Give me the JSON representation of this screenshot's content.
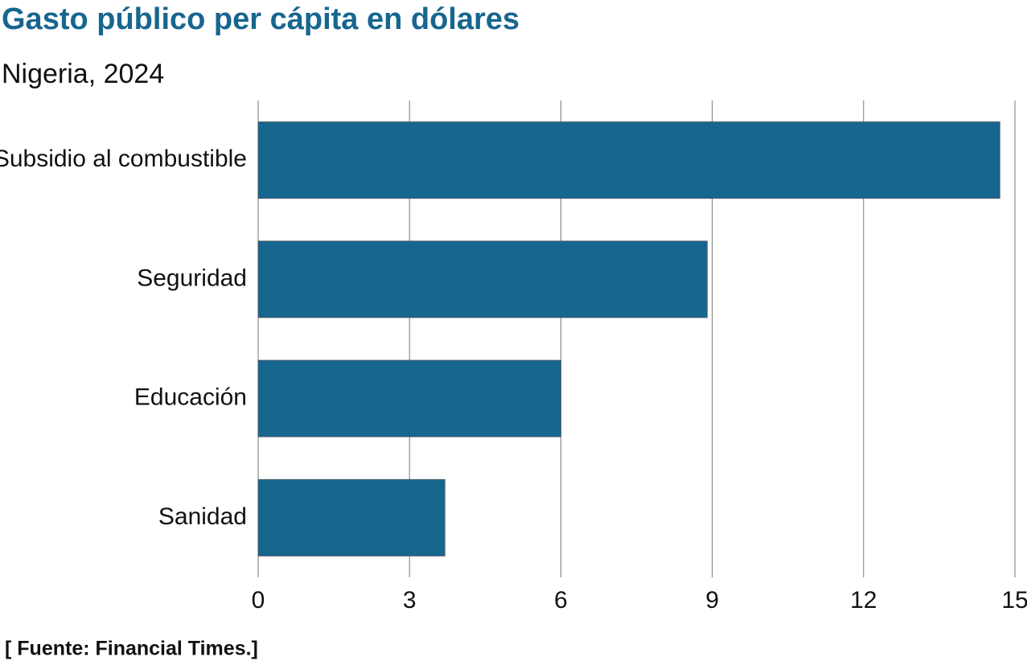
{
  "chart_data": {
    "type": "bar",
    "orientation": "horizontal",
    "title": "Gasto público per cápita en dólares",
    "subtitle": "Nigeria, 2024",
    "source": "[ Fuente: Financial Times.]",
    "categories": [
      "Subsidio al combustible",
      "Seguridad",
      "Educación",
      "Sanidad"
    ],
    "values": [
      14.7,
      8.9,
      6.0,
      3.7
    ],
    "color": "#17668f",
    "xlim": [
      0,
      15
    ],
    "xticks": [
      0,
      3,
      6,
      9,
      12,
      15
    ],
    "grid": true
  }
}
